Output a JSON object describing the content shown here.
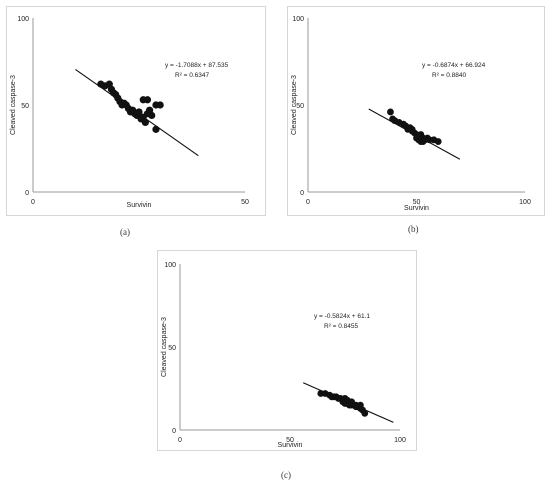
{
  "chart_data": [
    {
      "panel": "(a)",
      "type": "scatter",
      "title": "",
      "xlabel": "Survivin",
      "ylabel": "Cleaved caspase-3",
      "xlim": [
        0,
        50
      ],
      "ylim": [
        0,
        100
      ],
      "xticks": [
        "0",
        "50"
      ],
      "yticks": [
        "0",
        "50",
        "100"
      ],
      "grid": false,
      "equation": "y = -1.7088x + 87.535",
      "r2": "R² = 0.6347",
      "trendline": {
        "slope": -1.7088,
        "intercept": 87.535,
        "x_range": [
          10,
          39
        ]
      },
      "points": [
        [
          16.0,
          62
        ],
        [
          17.0,
          61
        ],
        [
          18.0,
          62
        ],
        [
          18.5,
          59
        ],
        [
          19.0,
          57
        ],
        [
          19.5,
          56
        ],
        [
          20.0,
          54
        ],
        [
          20.5,
          52
        ],
        [
          21.0,
          50
        ],
        [
          21.5,
          51
        ],
        [
          22.0,
          50
        ],
        [
          22.5,
          48
        ],
        [
          23.0,
          46
        ],
        [
          23.5,
          47
        ],
        [
          24.0,
          45
        ],
        [
          24.5,
          44
        ],
        [
          25.0,
          46
        ],
        [
          25.5,
          42
        ],
        [
          26.0,
          43
        ],
        [
          26.5,
          40
        ],
        [
          27.0,
          45
        ],
        [
          27.5,
          47
        ],
        [
          28.0,
          44
        ],
        [
          26.0,
          53
        ],
        [
          27.0,
          53
        ],
        [
          29.0,
          50
        ],
        [
          30.0,
          50
        ],
        [
          29.0,
          36
        ]
      ]
    },
    {
      "panel": "(b)",
      "type": "scatter",
      "title": "",
      "xlabel": "Survivin",
      "ylabel": "Cleaved caspase-3",
      "xlim": [
        0,
        100
      ],
      "ylim": [
        0,
        100
      ],
      "xticks": [
        "0",
        "50",
        "100"
      ],
      "yticks": [
        "0",
        "50",
        "100"
      ],
      "grid": false,
      "equation": "y = -0.6874x + 66.924",
      "r2": "R² = 0.8840",
      "trendline": {
        "slope": -0.6874,
        "intercept": 66.924,
        "x_range": [
          28,
          70
        ]
      },
      "points": [
        [
          38,
          46
        ],
        [
          39,
          42
        ],
        [
          40,
          41
        ],
        [
          42,
          40
        ],
        [
          44,
          39
        ],
        [
          45,
          38
        ],
        [
          46,
          37
        ],
        [
          47,
          37
        ],
        [
          48,
          36
        ],
        [
          49,
          34
        ],
        [
          50,
          33
        ],
        [
          51,
          32
        ],
        [
          52,
          33
        ],
        [
          53,
          31
        ],
        [
          54,
          30
        ],
        [
          55,
          31
        ],
        [
          56,
          30
        ],
        [
          58,
          30
        ],
        [
          60,
          29
        ],
        [
          51,
          30
        ],
        [
          52,
          29
        ],
        [
          53,
          29
        ],
        [
          50,
          31
        ],
        [
          48,
          35
        ],
        [
          46,
          36
        ]
      ]
    },
    {
      "panel": "(c)",
      "type": "scatter",
      "title": "",
      "xlabel": "Survivin",
      "ylabel": "Cleaved caspase-3",
      "xlim": [
        0,
        100
      ],
      "ylim": [
        0,
        100
      ],
      "xticks": [
        "0",
        "50",
        "100"
      ],
      "yticks": [
        "0",
        "50",
        "100"
      ],
      "grid": false,
      "equation": "y = -0.5824x + 61.1",
      "r2": "R² = 0.8455",
      "trendline": {
        "slope": -0.5824,
        "intercept": 61.1,
        "x_range": [
          56,
          97
        ]
      },
      "points": [
        [
          64,
          22
        ],
        [
          66,
          22
        ],
        [
          68,
          21
        ],
        [
          69,
          20
        ],
        [
          70,
          20
        ],
        [
          71,
          20
        ],
        [
          72,
          19
        ],
        [
          73,
          19
        ],
        [
          74,
          17
        ],
        [
          75,
          16
        ],
        [
          75,
          19
        ],
        [
          76,
          16
        ],
        [
          77,
          15
        ],
        [
          78,
          15
        ],
        [
          79,
          15
        ],
        [
          80,
          14
        ],
        [
          81,
          14
        ],
        [
          82,
          13
        ],
        [
          82,
          15
        ],
        [
          83,
          12
        ],
        [
          84,
          10
        ],
        [
          80,
          15
        ],
        [
          78,
          17
        ],
        [
          76,
          18
        ]
      ]
    }
  ],
  "captions": {
    "a": "(a)",
    "b": "(b)",
    "c": "(c)"
  }
}
